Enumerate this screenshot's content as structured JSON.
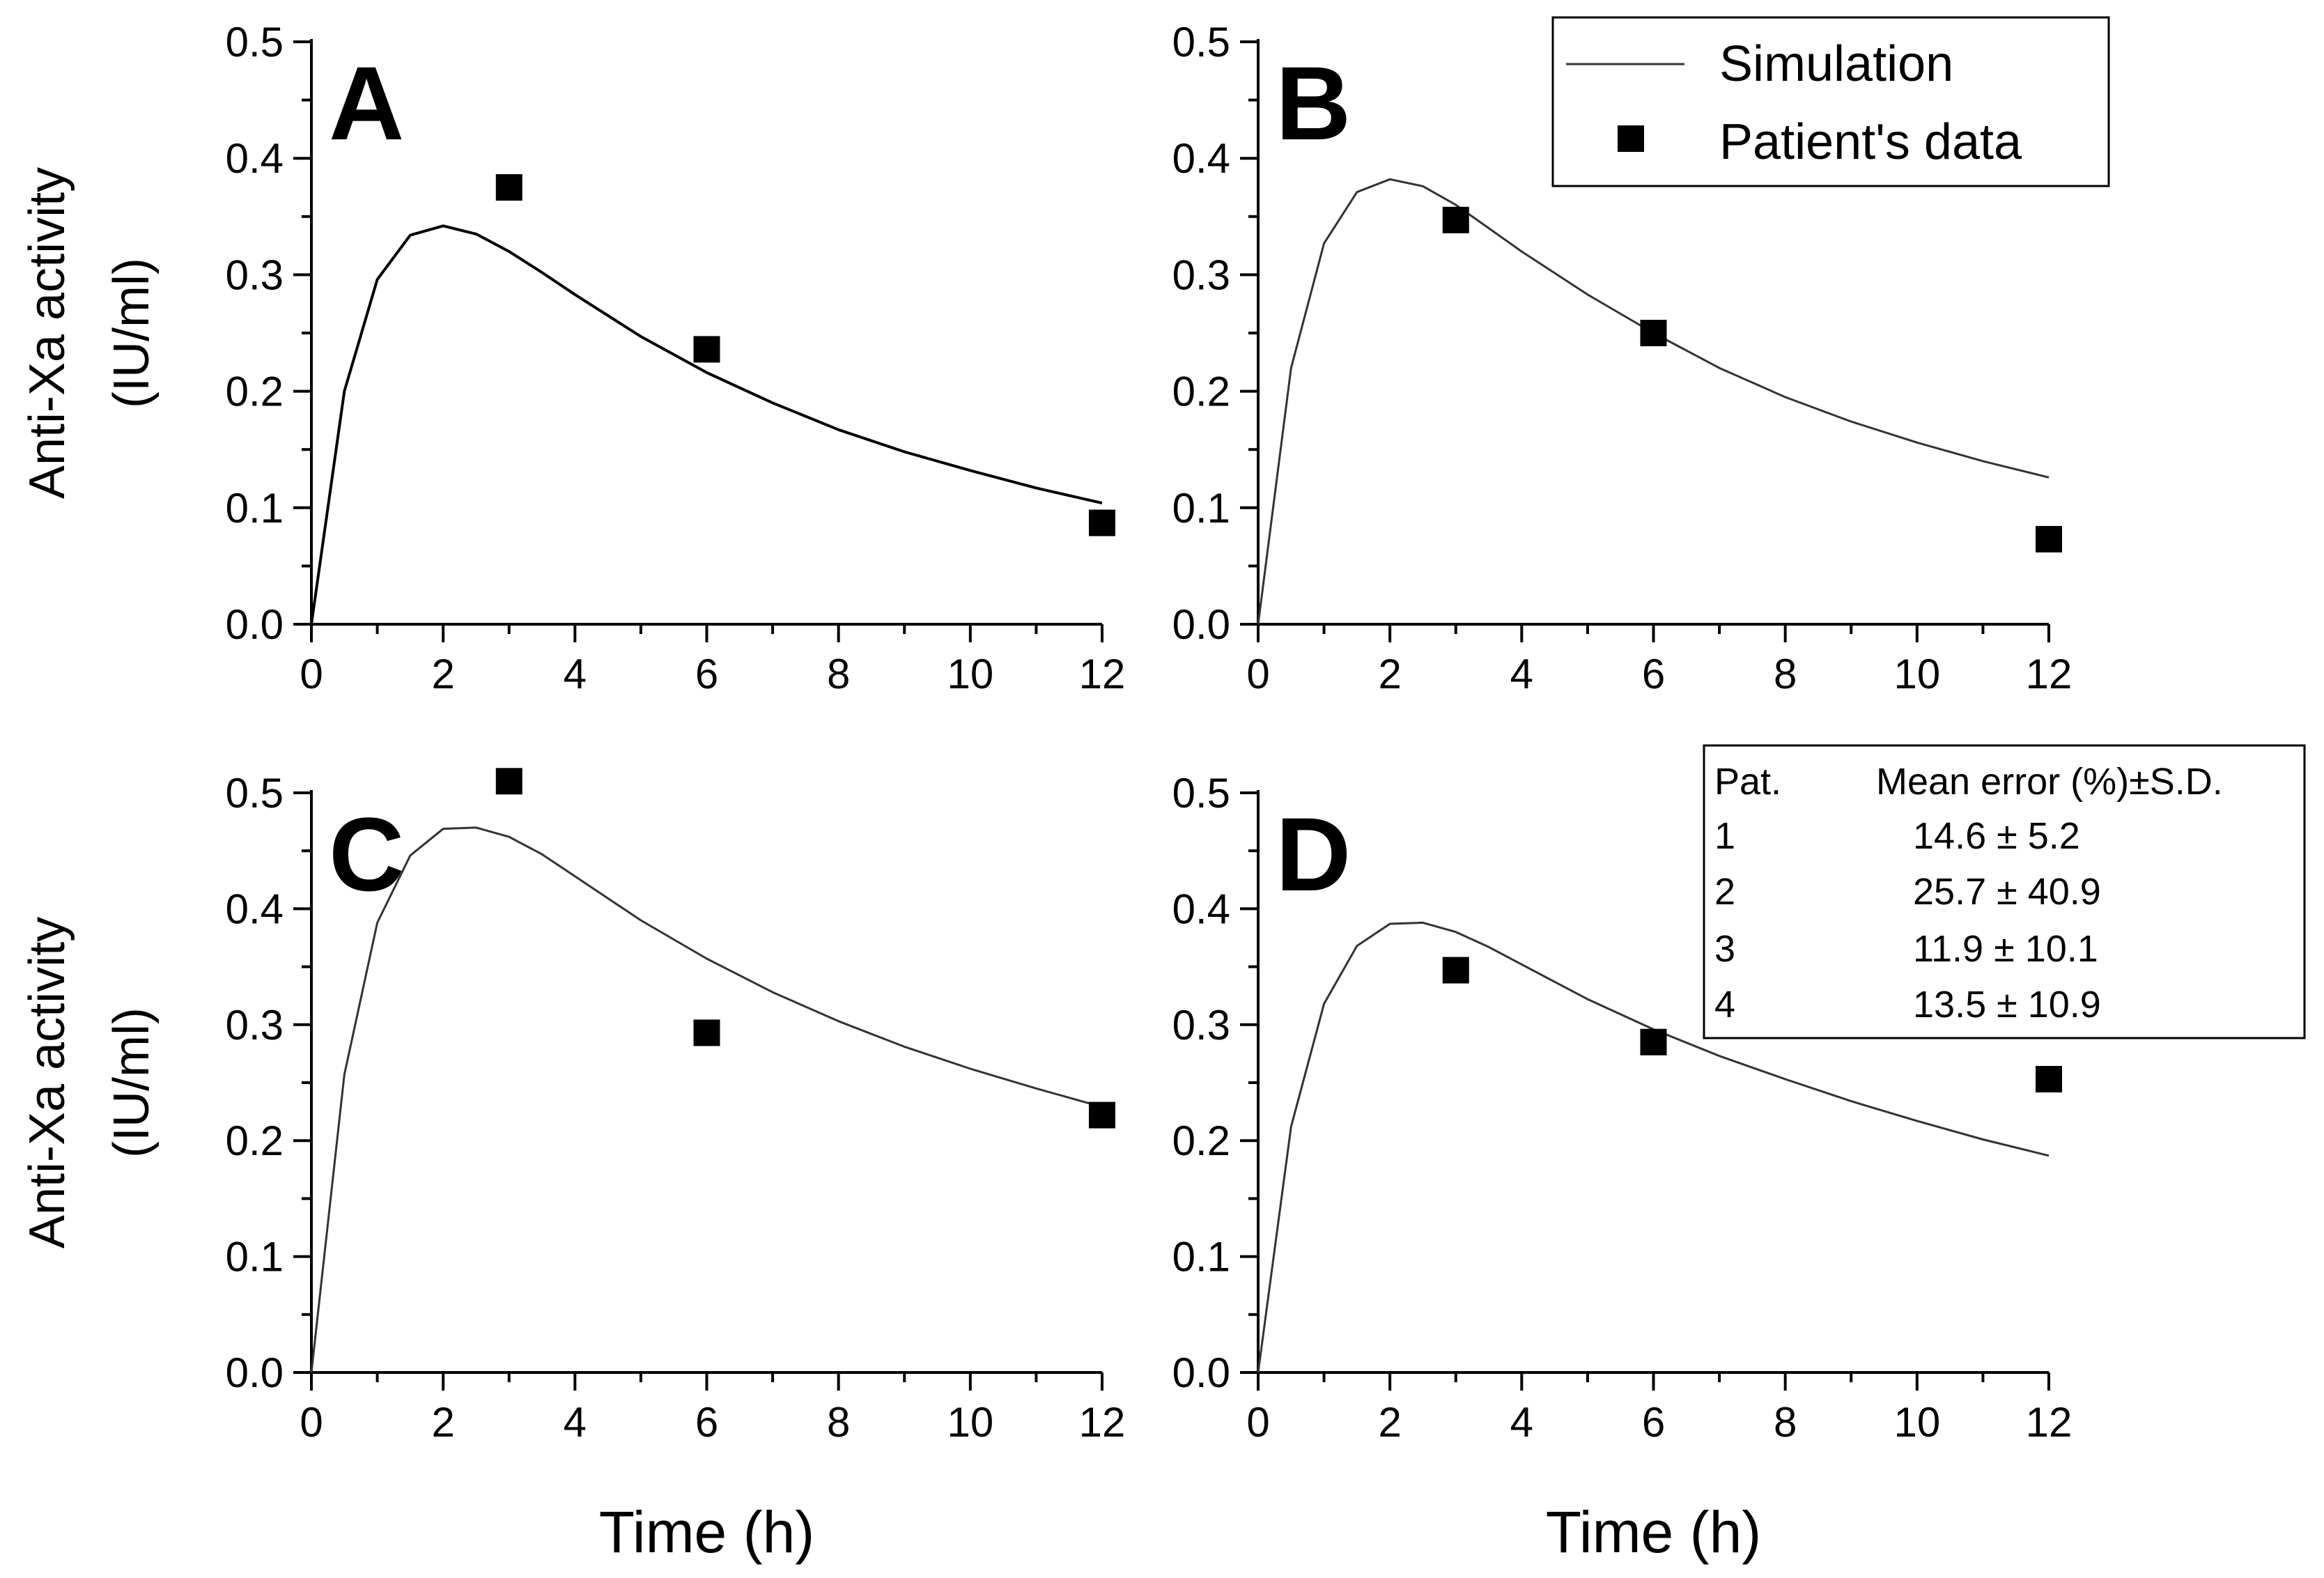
{
  "chart_data": [
    {
      "type": "line",
      "panel_label": "A",
      "ylabel_line1": "Anti-Xa activity",
      "ylabel_line2": "(IU/ml)",
      "xlabel": "",
      "xlim": [
        0,
        12
      ],
      "ylim": [
        0,
        0.5
      ],
      "xticks": [
        "0",
        "2",
        "4",
        "6",
        "8",
        "10",
        "12"
      ],
      "yticks": [
        "0.0",
        "0.1",
        "0.2",
        "0.3",
        "0.4",
        "0.5"
      ],
      "series": [
        {
          "name": "Simulation",
          "kind": "line",
          "x": [
            0,
            0.5,
            1,
            1.5,
            2,
            2.5,
            3,
            3.5,
            4,
            5,
            6,
            7,
            8,
            9,
            10,
            11,
            12
          ],
          "y": [
            0,
            0.2,
            0.296,
            0.334,
            0.342,
            0.335,
            0.32,
            0.302,
            0.283,
            0.247,
            0.216,
            0.19,
            0.167,
            0.148,
            0.132,
            0.117,
            0.104
          ]
        },
        {
          "name": "Patient's data",
          "kind": "scatter",
          "x": [
            3,
            6,
            12
          ],
          "y": [
            0.375,
            0.236,
            0.087
          ]
        }
      ]
    },
    {
      "type": "line",
      "panel_label": "B",
      "ylabel_line1": "",
      "ylabel_line2": "",
      "xlabel": "",
      "xlim": [
        0,
        12
      ],
      "ylim": [
        0,
        0.5
      ],
      "xticks": [
        "0",
        "2",
        "4",
        "6",
        "8",
        "10",
        "12"
      ],
      "yticks": [
        "0.0",
        "0.1",
        "0.2",
        "0.3",
        "0.4",
        "0.5"
      ],
      "series": [
        {
          "name": "Simulation",
          "kind": "line",
          "x": [
            0,
            0.5,
            1,
            1.5,
            2,
            2.5,
            3,
            3.5,
            4,
            5,
            6,
            7,
            8,
            9,
            10,
            11,
            12
          ],
          "y": [
            0,
            0.22,
            0.327,
            0.371,
            0.382,
            0.376,
            0.36,
            0.34,
            0.32,
            0.283,
            0.25,
            0.22,
            0.195,
            0.174,
            0.156,
            0.14,
            0.126
          ]
        },
        {
          "name": "Patient's data",
          "kind": "scatter",
          "x": [
            3,
            6,
            12
          ],
          "y": [
            0.347,
            0.25,
            0.073
          ]
        }
      ]
    },
    {
      "type": "line",
      "panel_label": "C",
      "ylabel_line1": "Anti-Xa activity",
      "ylabel_line2": "(IU/ml)",
      "xlabel": "Time (h)",
      "xlim": [
        0,
        12
      ],
      "ylim": [
        0,
        0.5
      ],
      "xticks": [
        "0",
        "2",
        "4",
        "6",
        "8",
        "10",
        "12"
      ],
      "yticks": [
        "0.0",
        "0.1",
        "0.2",
        "0.3",
        "0.4",
        "0.5"
      ],
      "series": [
        {
          "name": "Simulation",
          "kind": "line",
          "x": [
            0,
            0.5,
            1,
            1.5,
            2,
            2.5,
            3,
            3.5,
            4,
            5,
            6,
            7,
            8,
            9,
            10,
            11,
            12
          ],
          "y": [
            0,
            0.257,
            0.388,
            0.446,
            0.469,
            0.47,
            0.462,
            0.447,
            0.428,
            0.39,
            0.357,
            0.328,
            0.303,
            0.281,
            0.262,
            0.245,
            0.229
          ]
        },
        {
          "name": "Patient's data",
          "kind": "scatter",
          "x": [
            3,
            6,
            12
          ],
          "y": [
            0.51,
            0.293,
            0.222
          ]
        }
      ]
    },
    {
      "type": "line",
      "panel_label": "D",
      "ylabel_line1": "",
      "ylabel_line2": "",
      "xlabel": "Time (h)",
      "xlim": [
        0,
        12
      ],
      "ylim": [
        0,
        0.5
      ],
      "xticks": [
        "0",
        "2",
        "4",
        "6",
        "8",
        "10",
        "12"
      ],
      "yticks": [
        "0.0",
        "0.1",
        "0.2",
        "0.3",
        "0.4",
        "0.5"
      ],
      "series": [
        {
          "name": "Simulation",
          "kind": "line",
          "x": [
            0,
            0.5,
            1,
            1.5,
            2,
            2.5,
            3,
            3.5,
            4,
            5,
            6,
            7,
            8,
            9,
            10,
            11,
            12
          ],
          "y": [
            0,
            0.212,
            0.318,
            0.368,
            0.387,
            0.388,
            0.38,
            0.367,
            0.352,
            0.322,
            0.296,
            0.273,
            0.253,
            0.234,
            0.217,
            0.201,
            0.187
          ]
        },
        {
          "name": "Patient's data",
          "kind": "scatter",
          "x": [
            3,
            6,
            12
          ],
          "y": [
            0.347,
            0.285,
            0.253
          ]
        }
      ]
    }
  ],
  "legend": {
    "simulation_label": "Simulation",
    "patient_label": "Patient's data"
  },
  "error_table": {
    "header_patient": "Pat.",
    "header_error": "Mean error (%)±S.D.",
    "rows": [
      {
        "patient": "1",
        "error": "14.6 ± 5.2"
      },
      {
        "patient": "2",
        "error": "25.7 ± 40.9"
      },
      {
        "patient": "3",
        "error": "11.9 ± 10.1"
      },
      {
        "patient": "4",
        "error": "13.5 ± 10.9"
      }
    ]
  }
}
